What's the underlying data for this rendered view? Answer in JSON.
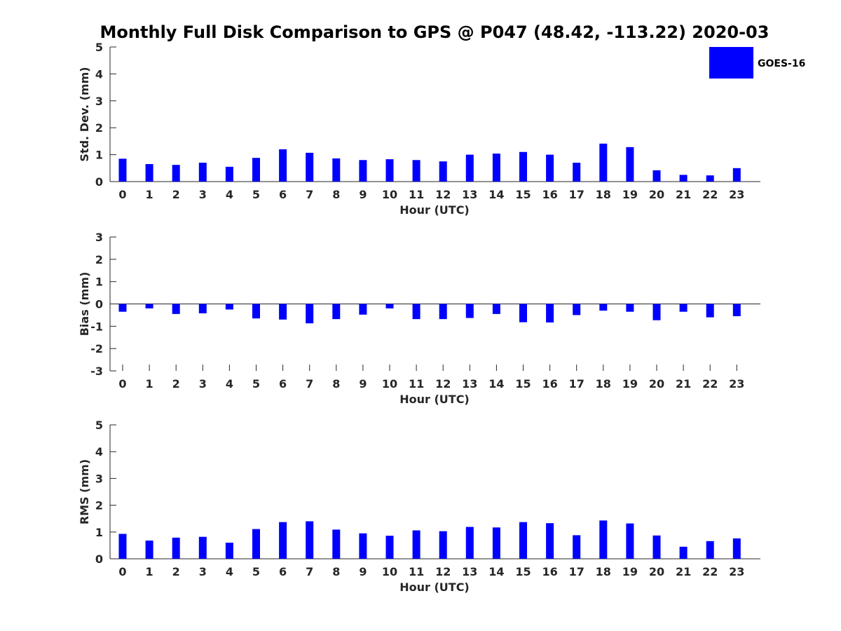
{
  "figure": {
    "title": "Monthly Full Disk Comparison to GPS @ P047 (48.42, -113.22) 2020-03",
    "legend": {
      "label": "GOES-16",
      "color": "#0000ff"
    }
  },
  "chart_data": [
    {
      "type": "bar",
      "title": "",
      "xlabel": "Hour (UTC)",
      "ylabel": "Std. Dev. (mm)",
      "ylim": [
        0,
        5
      ],
      "yticks": [
        0,
        1,
        2,
        3,
        4,
        5
      ],
      "categories": [
        "0",
        "1",
        "2",
        "3",
        "4",
        "5",
        "6",
        "7",
        "8",
        "9",
        "10",
        "11",
        "12",
        "13",
        "14",
        "15",
        "16",
        "17",
        "18",
        "19",
        "20",
        "21",
        "22",
        "23"
      ],
      "series": [
        {
          "name": "GOES-16",
          "color": "#0000ff",
          "values": [
            0.85,
            0.65,
            0.62,
            0.7,
            0.55,
            0.88,
            1.2,
            1.07,
            0.86,
            0.8,
            0.83,
            0.8,
            0.75,
            1.0,
            1.04,
            1.1,
            1.0,
            0.7,
            1.41,
            1.28,
            0.42,
            0.25,
            0.23,
            0.5
          ]
        }
      ],
      "legend": "top-right",
      "grid": false
    },
    {
      "type": "bar",
      "title": "",
      "xlabel": "Hour (UTC)",
      "ylabel": "Bias (mm)",
      "ylim": [
        -3,
        3
      ],
      "yticks": [
        -3,
        -2,
        -1,
        0,
        1,
        2,
        3
      ],
      "categories": [
        "0",
        "1",
        "2",
        "3",
        "4",
        "5",
        "6",
        "7",
        "8",
        "9",
        "10",
        "11",
        "12",
        "13",
        "14",
        "15",
        "16",
        "17",
        "18",
        "19",
        "20",
        "21",
        "22",
        "23"
      ],
      "series": [
        {
          "name": "GOES-16",
          "color": "#0000ff",
          "values": [
            -0.35,
            -0.2,
            -0.45,
            -0.42,
            -0.25,
            -0.65,
            -0.7,
            -0.87,
            -0.68,
            -0.48,
            -0.2,
            -0.68,
            -0.68,
            -0.63,
            -0.45,
            -0.82,
            -0.83,
            -0.5,
            -0.3,
            -0.35,
            -0.73,
            -0.35,
            -0.6,
            -0.55
          ]
        }
      ],
      "grid": false
    },
    {
      "type": "bar",
      "title": "",
      "xlabel": "Hour (UTC)",
      "ylabel": "RMS (mm)",
      "ylim": [
        0,
        5
      ],
      "yticks": [
        0,
        1,
        2,
        3,
        4,
        5
      ],
      "categories": [
        "0",
        "1",
        "2",
        "3",
        "4",
        "5",
        "6",
        "7",
        "8",
        "9",
        "10",
        "11",
        "12",
        "13",
        "14",
        "15",
        "16",
        "17",
        "18",
        "19",
        "20",
        "21",
        "22",
        "23"
      ],
      "series": [
        {
          "name": "GOES-16",
          "color": "#0000ff",
          "values": [
            0.93,
            0.68,
            0.79,
            0.82,
            0.6,
            1.11,
            1.37,
            1.4,
            1.09,
            0.95,
            0.86,
            1.06,
            1.03,
            1.19,
            1.17,
            1.37,
            1.33,
            0.88,
            1.43,
            1.32,
            0.87,
            0.45,
            0.66,
            0.76
          ]
        }
      ],
      "grid": false
    }
  ]
}
